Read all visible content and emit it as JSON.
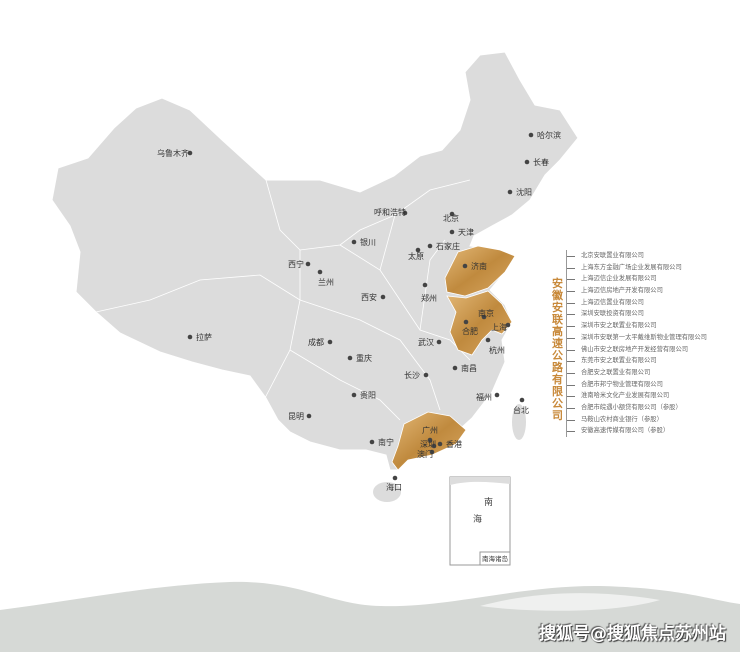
{
  "colors": {
    "land": "#dcdcdc",
    "highlight": "#c8923f",
    "highlight_light": "#e0b470",
    "accent": "#c8893a",
    "band": "#d5d8d5"
  },
  "highlighted_provinces": [
    "山东",
    "江苏",
    "安徽",
    "广东"
  ],
  "cities": [
    "乌鲁木齐",
    "哈尔滨",
    "长春",
    "沈阳",
    "呼和浩特",
    "北京",
    "天津",
    "石家庄",
    "银川",
    "太原",
    "济南",
    "西宁",
    "兰州",
    "西安",
    "郑州",
    "南京",
    "合肥",
    "上海",
    "杭州",
    "拉萨",
    "成都",
    "武汉",
    "重庆",
    "长沙",
    "南昌",
    "福州",
    "贵阳",
    "台北",
    "昆明",
    "南宁",
    "广州",
    "深圳",
    "香港",
    "澳门",
    "海口"
  ],
  "inset": {
    "label": "南海诸岛",
    "sea_chars": [
      "南",
      "海"
    ]
  },
  "legend": {
    "title": "安徽安联高速公路有限公司",
    "companies": [
      "北京安联置业有限公司",
      "上海东方金融广场企业发展有限公司",
      "上海迈信企业发展有限公司",
      "上海迈信房地产开发有限公司",
      "上海迈信置业有限公司",
      "深圳安联投资有限公司",
      "深圳市安之联置业有限公司",
      "深圳市安联第一太平戴维斯物业管理有限公司",
      "佛山市安之联房地产开发经营有限公司",
      "东莞市安之联置业有限公司",
      "合肥安之联置业有限公司",
      "合肥市邦宁物业管理有限公司",
      "淮南哈米文化产业发展有限公司",
      "合肥市皖遇小额贷有限公司（参股）",
      "马鞍山农村商业银行（参股）",
      "安徽高速传媒有限公司（参股）"
    ]
  },
  "watermark": "搜狐号@搜狐焦点苏州站"
}
